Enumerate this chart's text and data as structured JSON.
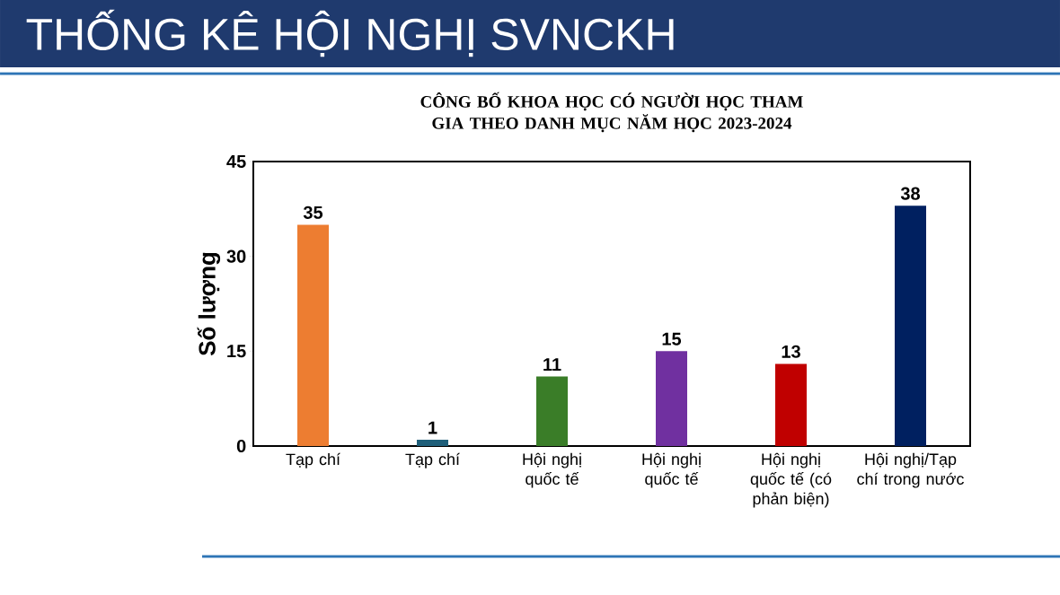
{
  "chart_data": {
    "type": "bar",
    "title": "THỐNG KÊ HỘI NGHỊ SVNCKH",
    "subtitle": "CÔNG BỐ KHOA HỌC CÓ NGƯỜI HỌC THAM GIA THEO DANH MỤC NĂM HỌC 2023-2024",
    "ylabel": "Số lượng",
    "categories": [
      "Tạp chí",
      "Tạp chí",
      "Hội nghị quốc tế",
      "Hội nghị quốc tế",
      "Hội nghị quốc tế (có phản biện)",
      "Hội nghị/Tạp chí trong nước"
    ],
    "values": [
      35,
      1,
      11,
      15,
      13,
      38
    ],
    "colors": [
      "#ed7d31",
      "#1f5f7a",
      "#3a7d28",
      "#7030a0",
      "#c00000",
      "#002060"
    ],
    "ylim": [
      0,
      45
    ],
    "yticks": [
      0,
      15,
      30,
      45
    ],
    "grid": false,
    "data_labels": true
  }
}
